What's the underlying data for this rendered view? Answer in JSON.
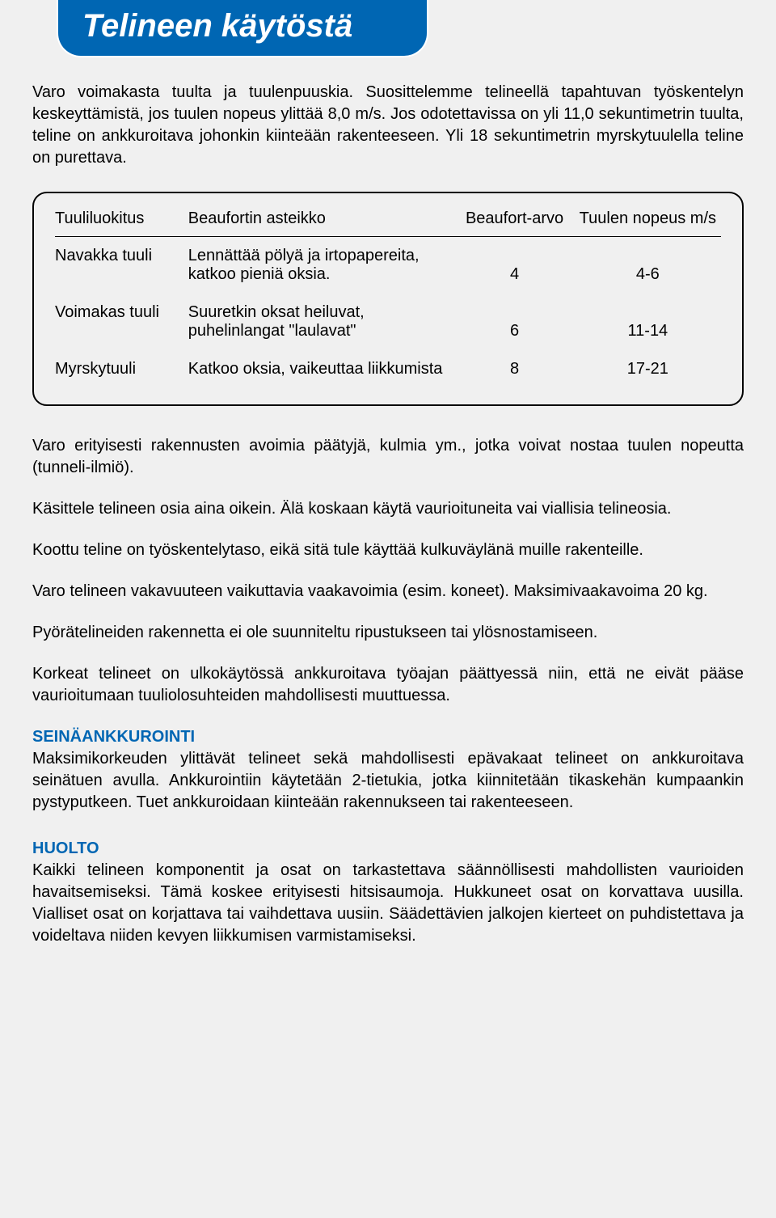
{
  "colors": {
    "banner_bg": "#0066b3",
    "banner_text": "#ffffff",
    "page_bg": "#f0f0f0",
    "text": "#000000",
    "heading": "#0066b3",
    "border": "#000000"
  },
  "typography": {
    "body_fontsize_pt": 15,
    "title_fontsize_pt": 30,
    "font_family": "Arial"
  },
  "title": "Telineen käytöstä",
  "intro": "Varo voimakasta tuulta ja tuulenpuuskia. Suosittelemme telineellä tapahtuvan työskentelyn keskeyttämistä, jos tuulen nopeus ylittää 8,0 m/s. Jos odotettavissa on yli 11,0 sekuntimetrin tuulta, teline on ankkuroitava johonkin kiinteään rakenteeseen. Yli 18 sekuntimetrin myrsky­tuulella teline on purettava.",
  "table": {
    "headers": [
      "Tuuliluokitus",
      "Beaufortin asteikko",
      "Beaufort-arvo",
      "Tuulen nopeus m/s"
    ],
    "rows": [
      {
        "class": "Navakka tuuli",
        "desc": "Lennättää pölyä ja irto­papereita, katkoo pieniä oksia.",
        "beaufort": "4",
        "speed": "4-6"
      },
      {
        "class": "Voimakas tuuli",
        "desc": "Suuretkin oksat heiluvat, puhelinlangat \"laulavat\"",
        "beaufort": "6",
        "speed": "11-14"
      },
      {
        "class": "Myrskytuuli",
        "desc": "Katkoo oksia, vaikeuttaa liikkumista",
        "beaufort": "8",
        "speed": "17-21"
      }
    ]
  },
  "paragraphs": [
    "Varo erityisesti rakennusten avoimia päätyjä, kulmia ym., jotka voivat nostaa tuulen nopeutta (tunneli-ilmiö).",
    "Käsittele telineen osia aina oikein. Älä koskaan käytä vaurioituneita vai viallisia telineosia.",
    "Koottu teline on työskentelytaso, eikä sitä tule käyttää kulkuväylänä muille rakenteille.",
    "Varo telineen vakavuuteen vaikuttavia vaakavoimia (esim. koneet). Maksimivaakavoima 20 kg.",
    "Pyörätelineiden rakennetta ei ole suunniteltu ripustukseen tai ylösnostamiseen.",
    "Korkeat telineet on ulkokäytössä ankkuroitava työajan päättyessä niin, että ne eivät pääse vaurioitumaan tuuliolosuhteiden mahdollisesti muuttuessa."
  ],
  "sections": [
    {
      "heading": "SEINÄANKKUROINTI",
      "body": "Maksimikorkeuden ylittävät telineet sekä mahdollisesti epävakaat telineet on ankkuroitava seinätuen avulla. Ankkurointiin käytetään 2-tietukia, jotka kiinnitetään tikaskehän kumpaankin pystyputkeen. Tuet ankkuroidaan kiinteään rakennukseen tai rakenteeseen."
    },
    {
      "heading": "HUOLTO",
      "body": "Kaikki telineen komponentit ja osat on tarkastettava säännöllisesti mahdollisten vaurioiden havaitsemiseksi. Tämä koskee erityisesti hitsisaumoja. Hukkuneet osat on korvattava uusilla. Vialliset osat on korjattava tai vaihdettava uusiin. Säädettävien jalkojen kierteet on puhdistettava ja voideltava niiden kevyen liikkumisen varmistamiseksi."
    }
  ]
}
